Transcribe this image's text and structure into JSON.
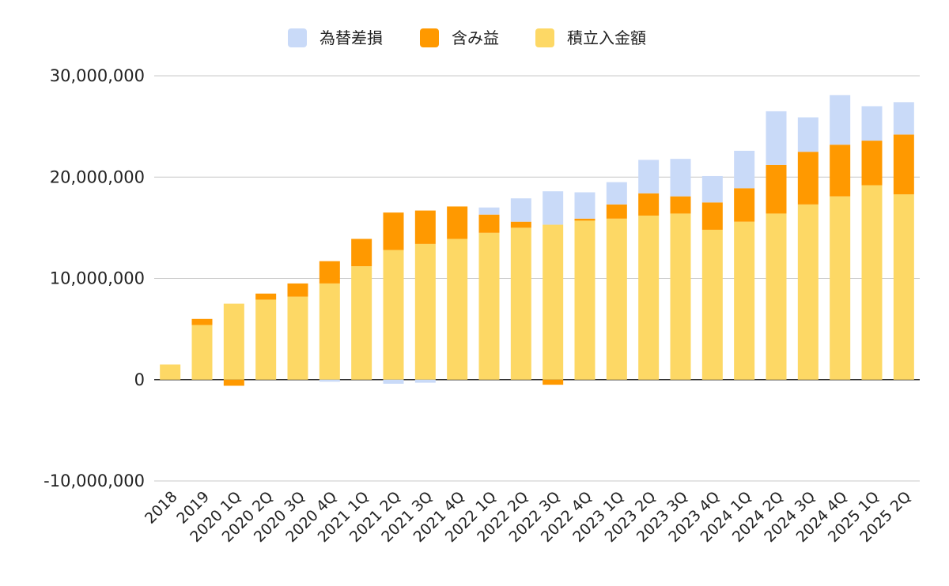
{
  "chart_data": {
    "type": "bar",
    "stacked": true,
    "title": "",
    "xlabel": "",
    "ylabel": "",
    "ylim": [
      -10000000,
      30000000
    ],
    "yticks": [
      30000000,
      20000000,
      10000000,
      0,
      -10000000
    ],
    "ytick_labels": [
      "30,000,000",
      "20,000,000",
      "10,000,000",
      "0",
      "-10,000,000"
    ],
    "grid": true,
    "legend_position": "top-center",
    "categories": [
      "2018",
      "2019",
      "2020 1Q",
      "2020 2Q",
      "2020 3Q",
      "2020 4Q",
      "2021 1Q",
      "2021 2Q",
      "2021 3Q",
      "2021 4Q",
      "2022 1Q",
      "2022 2Q",
      "2022 3Q",
      "2022 4Q",
      "2023 1Q",
      "2023 2Q",
      "2023 3Q",
      "2023 4Q",
      "2024 1Q",
      "2024 2Q",
      "2024 3Q",
      "2024 4Q",
      "2025 1Q",
      "2025 2Q"
    ],
    "series": [
      {
        "name": "積立入金額",
        "color": "#fdd865",
        "values": [
          1500000,
          5400000,
          7500000,
          7900000,
          8200000,
          9500000,
          11200000,
          12800000,
          13400000,
          13900000,
          14500000,
          15000000,
          15300000,
          15700000,
          15900000,
          16200000,
          16400000,
          14800000,
          15600000,
          16400000,
          17300000,
          18100000,
          19200000,
          18300000
        ]
      },
      {
        "name": "含み益",
        "color": "#ff9900",
        "values": [
          0,
          600000,
          -600000,
          600000,
          1300000,
          2200000,
          2700000,
          3700000,
          3300000,
          3200000,
          1800000,
          600000,
          -500000,
          200000,
          1400000,
          2200000,
          1700000,
          2700000,
          3300000,
          4800000,
          5200000,
          5100000,
          4400000,
          5900000
        ]
      },
      {
        "name": "為替差損",
        "color": "#c9daf8",
        "values": [
          0,
          0,
          0,
          0,
          0,
          -200000,
          0,
          -400000,
          -300000,
          0,
          700000,
          2300000,
          3300000,
          2600000,
          2200000,
          3300000,
          3700000,
          2600000,
          3700000,
          5300000,
          3400000,
          4900000,
          3400000,
          3200000
        ]
      }
    ],
    "legend_order": [
      "為替差損",
      "含み益",
      "積立入金額"
    ]
  }
}
